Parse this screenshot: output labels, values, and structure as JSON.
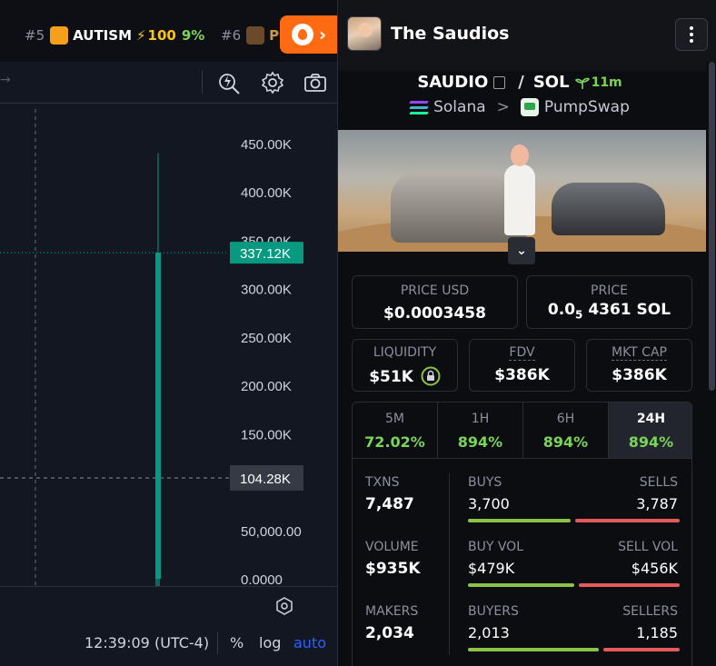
{
  "trending": [
    {
      "rank": "#5",
      "name": "AUTISM",
      "bolt": "⚡",
      "score": "100",
      "pct": "9%",
      "icon_color": "#f59f1b"
    },
    {
      "rank": "#6",
      "name": "P",
      "icon_color": "#6b4a2b"
    }
  ],
  "chart": {
    "icons": [
      "lightning-search-icon",
      "gear-icon",
      "camera-icon"
    ],
    "price_axis": [
      "450.00K",
      "400.00K",
      "350.00K",
      "300.00K",
      "250.00K",
      "200.00K",
      "150.00K",
      "100.00K",
      "50,000.00",
      "0.0000"
    ],
    "current_label": "337.12K",
    "current_color": "#089981",
    "crosshair_label": "104.28K",
    "candle_color": "#089981",
    "volume_color": "#0b6b5a",
    "settings_icon": "hexagon-settings-icon"
  },
  "chart_data": {
    "type": "candlestick",
    "y_unit": "market cap",
    "ylim": [
      0,
      480000
    ],
    "candles": [
      {
        "open": 0,
        "high": 440000,
        "low": 0,
        "close": 337120
      }
    ],
    "crosshair_value": 104280,
    "current_value": 337120
  },
  "bottom": {
    "clock": "12:39:09 (UTC-4)",
    "pct": "%",
    "log": "log",
    "auto": "auto"
  },
  "token": {
    "name": "The Saudios",
    "base": "SAUDIO",
    "slash": "/",
    "quote": "SOL",
    "age": "11m",
    "chain": "Solana",
    "chevron": ">",
    "dex": "PumpSwap",
    "expand": "⌄"
  },
  "prices": {
    "usd_label": "PRICE USD",
    "usd_value": "$0.0003458",
    "native_label": "PRICE",
    "native_value_prefix": "0.0",
    "native_value_sub": "5",
    "native_value_rest": "4361 SOL"
  },
  "metrics": [
    {
      "label": "LIQUIDITY",
      "value": "$51K",
      "icon": "lock-icon"
    },
    {
      "label": "FDV",
      "value": "$386K"
    },
    {
      "label": "MKT CAP",
      "value": "$386K"
    }
  ],
  "timeframes": [
    {
      "label": "5M",
      "value": "72.02%"
    },
    {
      "label": "1H",
      "value": "894%"
    },
    {
      "label": "6H",
      "value": "894%"
    },
    {
      "label": "24H",
      "value": "894%",
      "active": true
    }
  ],
  "stats": {
    "txns": {
      "label": "TXNS",
      "value": "7,487"
    },
    "buys": {
      "label": "BUYS",
      "value": "3,700"
    },
    "sells": {
      "label": "SELLS",
      "value": "3,787"
    },
    "buy_share": 0.494,
    "volume": {
      "label": "VOLUME",
      "value": "$935K"
    },
    "buy_vol": {
      "label": "BUY VOL",
      "value": "$479K"
    },
    "sell_vol": {
      "label": "SELL VOL",
      "value": "$456K"
    },
    "buy_vol_share": 0.512,
    "makers": {
      "label": "MAKERS",
      "value": "2,034"
    },
    "buyers": {
      "label": "BUYERS",
      "value": "2,013"
    },
    "sellers": {
      "label": "SELLERS",
      "value": "1,185"
    },
    "buyers_share": 0.63,
    "green": "#8bc34a",
    "red": "#e35b5b"
  }
}
